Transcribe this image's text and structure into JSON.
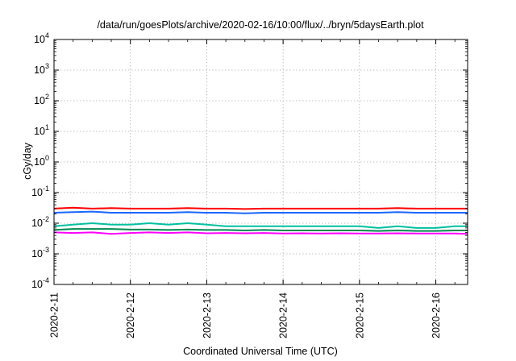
{
  "chart_data": {
    "type": "line",
    "title": "/data/run/goesPlots/archive/2020-02-16/10:00/flux/../bryn/5daysEarth.plot",
    "xlabel": "Coordinated Universal Time (UTC)",
    "ylabel": "cGy/day",
    "yscale": "log",
    "ylim": [
      0.0001,
      10000
    ],
    "y_ticks": [
      {
        "value": 0.0001,
        "base": "10",
        "exp": "-4"
      },
      {
        "value": 0.001,
        "base": "10",
        "exp": "-3"
      },
      {
        "value": 0.01,
        "base": "10",
        "exp": "-2"
      },
      {
        "value": 0.1,
        "base": "10",
        "exp": "-1"
      },
      {
        "value": 1,
        "base": "10",
        "exp": "0"
      },
      {
        "value": 10,
        "base": "10",
        "exp": "1"
      },
      {
        "value": 100,
        "base": "10",
        "exp": "2"
      },
      {
        "value": 1000,
        "base": "10",
        "exp": "3"
      },
      {
        "value": 10000,
        "base": "10",
        "exp": "4"
      }
    ],
    "xlim": [
      "2020-02-11",
      "2020-02-16 10:00"
    ],
    "x_ticks": [
      "2020-2-11",
      "2020-2-12",
      "2020-2-13",
      "2020-2-14",
      "2020-2-15",
      "2020-2-16"
    ],
    "grid": true,
    "series_colors": [
      "#ff0000",
      "#1a66ff",
      "#00c0a0",
      "#008a50",
      "#ff00ff"
    ],
    "series": [
      {
        "color": "#ff0000",
        "x": [
          "2020-02-11 00:00",
          "2020-02-11 06:00",
          "2020-02-11 12:00",
          "2020-02-11 18:00",
          "2020-02-12 00:00",
          "2020-02-12 06:00",
          "2020-02-12 12:00",
          "2020-02-12 18:00",
          "2020-02-13 00:00",
          "2020-02-13 06:00",
          "2020-02-13 12:00",
          "2020-02-13 18:00",
          "2020-02-14 00:00",
          "2020-02-14 06:00",
          "2020-02-14 12:00",
          "2020-02-14 18:00",
          "2020-02-15 00:00",
          "2020-02-15 06:00",
          "2020-02-15 12:00",
          "2020-02-15 18:00",
          "2020-02-16 00:00",
          "2020-02-16 06:00",
          "2020-02-16 10:00"
        ],
        "values": [
          0.03,
          0.032,
          0.03,
          0.031,
          0.03,
          0.03,
          0.03,
          0.031,
          0.03,
          0.03,
          0.029,
          0.03,
          0.03,
          0.03,
          0.03,
          0.03,
          0.03,
          0.03,
          0.031,
          0.03,
          0.03,
          0.03,
          0.03
        ]
      },
      {
        "color": "#1a66ff",
        "x": [
          "2020-02-11 00:00",
          "2020-02-11 06:00",
          "2020-02-11 12:00",
          "2020-02-11 18:00",
          "2020-02-12 00:00",
          "2020-02-12 06:00",
          "2020-02-12 12:00",
          "2020-02-12 18:00",
          "2020-02-13 00:00",
          "2020-02-13 06:00",
          "2020-02-13 12:00",
          "2020-02-13 18:00",
          "2020-02-14 00:00",
          "2020-02-14 06:00",
          "2020-02-14 12:00",
          "2020-02-14 18:00",
          "2020-02-15 00:00",
          "2020-02-15 06:00",
          "2020-02-15 12:00",
          "2020-02-15 18:00",
          "2020-02-16 00:00",
          "2020-02-16 06:00",
          "2020-02-16 10:00"
        ],
        "values": [
          0.022,
          0.023,
          0.024,
          0.022,
          0.022,
          0.022,
          0.022,
          0.023,
          0.022,
          0.022,
          0.021,
          0.022,
          0.022,
          0.022,
          0.022,
          0.022,
          0.022,
          0.022,
          0.023,
          0.022,
          0.022,
          0.022,
          0.022
        ]
      },
      {
        "color": "#00c0a0",
        "x": [
          "2020-02-11 00:00",
          "2020-02-11 06:00",
          "2020-02-11 12:00",
          "2020-02-11 18:00",
          "2020-02-12 00:00",
          "2020-02-12 06:00",
          "2020-02-12 12:00",
          "2020-02-12 18:00",
          "2020-02-13 00:00",
          "2020-02-13 06:00",
          "2020-02-13 12:00",
          "2020-02-13 18:00",
          "2020-02-14 00:00",
          "2020-02-14 06:00",
          "2020-02-14 12:00",
          "2020-02-14 18:00",
          "2020-02-15 00:00",
          "2020-02-15 06:00",
          "2020-02-15 12:00",
          "2020-02-15 18:00",
          "2020-02-16 00:00",
          "2020-02-16 06:00",
          "2020-02-16 10:00"
        ],
        "values": [
          0.008,
          0.009,
          0.01,
          0.009,
          0.009,
          0.01,
          0.009,
          0.01,
          0.009,
          0.008,
          0.008,
          0.008,
          0.008,
          0.008,
          0.008,
          0.008,
          0.008,
          0.007,
          0.008,
          0.007,
          0.007,
          0.008,
          0.008
        ]
      },
      {
        "color": "#008a50",
        "x": [
          "2020-02-11 00:00",
          "2020-02-11 06:00",
          "2020-02-11 12:00",
          "2020-02-11 18:00",
          "2020-02-12 00:00",
          "2020-02-12 06:00",
          "2020-02-12 12:00",
          "2020-02-12 18:00",
          "2020-02-13 00:00",
          "2020-02-13 06:00",
          "2020-02-13 12:00",
          "2020-02-13 18:00",
          "2020-02-14 00:00",
          "2020-02-14 06:00",
          "2020-02-14 12:00",
          "2020-02-14 18:00",
          "2020-02-15 00:00",
          "2020-02-15 06:00",
          "2020-02-15 12:00",
          "2020-02-15 18:00",
          "2020-02-16 00:00",
          "2020-02-16 06:00",
          "2020-02-16 10:00"
        ],
        "values": [
          0.006,
          0.0065,
          0.0065,
          0.0065,
          0.0062,
          0.0062,
          0.006,
          0.0062,
          0.006,
          0.006,
          0.0058,
          0.006,
          0.0058,
          0.0058,
          0.0058,
          0.0058,
          0.0058,
          0.0056,
          0.0058,
          0.0056,
          0.0056,
          0.0058,
          0.0058
        ]
      },
      {
        "color": "#ff00ff",
        "x": [
          "2020-02-11 00:00",
          "2020-02-11 06:00",
          "2020-02-11 12:00",
          "2020-02-11 18:00",
          "2020-02-12 00:00",
          "2020-02-12 06:00",
          "2020-02-12 12:00",
          "2020-02-12 18:00",
          "2020-02-13 00:00",
          "2020-02-13 06:00",
          "2020-02-13 12:00",
          "2020-02-13 18:00",
          "2020-02-14 00:00",
          "2020-02-14 06:00",
          "2020-02-14 12:00",
          "2020-02-14 18:00",
          "2020-02-15 00:00",
          "2020-02-15 06:00",
          "2020-02-15 12:00",
          "2020-02-15 18:00",
          "2020-02-16 00:00",
          "2020-02-16 06:00",
          "2020-02-16 10:00"
        ],
        "values": [
          0.005,
          0.0048,
          0.005,
          0.0045,
          0.0048,
          0.005,
          0.0048,
          0.005,
          0.0047,
          0.0048,
          0.0047,
          0.0048,
          0.0046,
          0.0047,
          0.0046,
          0.0047,
          0.0046,
          0.0046,
          0.0047,
          0.0046,
          0.0046,
          0.0046,
          0.0045
        ]
      }
    ]
  }
}
